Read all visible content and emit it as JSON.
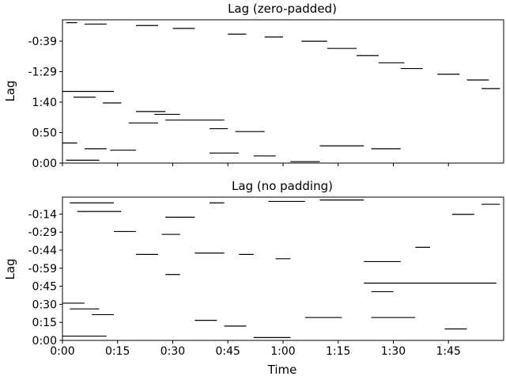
{
  "chart_data": [
    {
      "type": "heatmap",
      "title": "Lag (zero-padded)",
      "ylabel": "Lag",
      "xlabel": "",
      "colormap": [
        "#ffffff",
        "#000000"
      ],
      "grid": false,
      "legend": "none",
      "xlim_seconds": [
        0,
        120
      ],
      "ytick_labels": [
        "0:00",
        "0:50",
        "1:40",
        "-1:29",
        "-0:39"
      ],
      "xtick_labels": [],
      "segments": [
        {
          "x0": 1,
          "x1": 4,
          "row": 0.98
        },
        {
          "x0": 6,
          "x1": 12,
          "row": 0.97
        },
        {
          "x0": 20,
          "x1": 26,
          "row": 0.96
        },
        {
          "x0": 30,
          "x1": 36,
          "row": 0.94
        },
        {
          "x0": 45,
          "x1": 50,
          "row": 0.9
        },
        {
          "x0": 55,
          "x1": 60,
          "row": 0.88
        },
        {
          "x0": 65,
          "x1": 72,
          "row": 0.85
        },
        {
          "x0": 72,
          "x1": 80,
          "row": 0.8
        },
        {
          "x0": 80,
          "x1": 86,
          "row": 0.75
        },
        {
          "x0": 86,
          "x1": 93,
          "row": 0.7
        },
        {
          "x0": 92,
          "x1": 98,
          "row": 0.66
        },
        {
          "x0": 102,
          "x1": 108,
          "row": 0.62
        },
        {
          "x0": 110,
          "x1": 116,
          "row": 0.58
        },
        {
          "x0": 114,
          "x1": 119,
          "row": 0.52
        },
        {
          "x0": 0,
          "x1": 14,
          "row": 0.5
        },
        {
          "x0": 3,
          "x1": 9,
          "row": 0.46
        },
        {
          "x0": 11,
          "x1": 16,
          "row": 0.42
        },
        {
          "x0": 20,
          "x1": 28,
          "row": 0.36
        },
        {
          "x0": 25,
          "x1": 32,
          "row": 0.34
        },
        {
          "x0": 28,
          "x1": 44,
          "row": 0.3
        },
        {
          "x0": 18,
          "x1": 26,
          "row": 0.28
        },
        {
          "x0": 40,
          "x1": 45,
          "row": 0.24
        },
        {
          "x0": 47,
          "x1": 55,
          "row": 0.22
        },
        {
          "x0": 0,
          "x1": 4,
          "row": 0.14
        },
        {
          "x0": 6,
          "x1": 12,
          "row": 0.1
        },
        {
          "x0": 13,
          "x1": 20,
          "row": 0.09
        },
        {
          "x0": 40,
          "x1": 48,
          "row": 0.07
        },
        {
          "x0": 52,
          "x1": 58,
          "row": 0.05
        },
        {
          "x0": 70,
          "x1": 82,
          "row": 0.12
        },
        {
          "x0": 84,
          "x1": 92,
          "row": 0.1
        },
        {
          "x0": 1,
          "x1": 10,
          "row": 0.02
        },
        {
          "x0": 62,
          "x1": 70,
          "row": 0.01
        }
      ]
    },
    {
      "type": "heatmap",
      "title": "Lag (no padding)",
      "ylabel": "Lag",
      "xlabel": "Time",
      "colormap": [
        "#ffffff",
        "#000000"
      ],
      "grid": false,
      "legend": "none",
      "xlim_seconds": [
        0,
        120
      ],
      "ytick_labels": [
        "0:00",
        "0:15",
        "0:30",
        "0:45",
        "-0:59",
        "-0:44",
        "-0:29",
        "-0:14"
      ],
      "xtick_labels": [
        "0:00",
        "0:15",
        "0:30",
        "0:45",
        "1:00",
        "1:15",
        "1:30",
        "1:45"
      ],
      "segments": [
        {
          "x0": 2,
          "x1": 14,
          "row": 0.96
        },
        {
          "x0": 4,
          "x1": 16,
          "row": 0.9
        },
        {
          "x0": 28,
          "x1": 36,
          "row": 0.86
        },
        {
          "x0": 40,
          "x1": 44,
          "row": 0.96
        },
        {
          "x0": 56,
          "x1": 66,
          "row": 0.97
        },
        {
          "x0": 70,
          "x1": 82,
          "row": 0.98
        },
        {
          "x0": 106,
          "x1": 112,
          "row": 0.88
        },
        {
          "x0": 114,
          "x1": 119,
          "row": 0.95
        },
        {
          "x0": 14,
          "x1": 20,
          "row": 0.76
        },
        {
          "x0": 27,
          "x1": 32,
          "row": 0.74
        },
        {
          "x0": 20,
          "x1": 26,
          "row": 0.6
        },
        {
          "x0": 36,
          "x1": 44,
          "row": 0.61
        },
        {
          "x0": 48,
          "x1": 52,
          "row": 0.6
        },
        {
          "x0": 58,
          "x1": 62,
          "row": 0.57
        },
        {
          "x0": 82,
          "x1": 92,
          "row": 0.55
        },
        {
          "x0": 96,
          "x1": 100,
          "row": 0.65
        },
        {
          "x0": 28,
          "x1": 32,
          "row": 0.46
        },
        {
          "x0": 82,
          "x1": 118,
          "row": 0.4
        },
        {
          "x0": 84,
          "x1": 90,
          "row": 0.34
        },
        {
          "x0": 0,
          "x1": 6,
          "row": 0.26
        },
        {
          "x0": 2,
          "x1": 10,
          "row": 0.22
        },
        {
          "x0": 8,
          "x1": 14,
          "row": 0.18
        },
        {
          "x0": 36,
          "x1": 42,
          "row": 0.14
        },
        {
          "x0": 44,
          "x1": 50,
          "row": 0.1
        },
        {
          "x0": 66,
          "x1": 76,
          "row": 0.16
        },
        {
          "x0": 84,
          "x1": 96,
          "row": 0.16
        },
        {
          "x0": 104,
          "x1": 110,
          "row": 0.08
        },
        {
          "x0": 0,
          "x1": 12,
          "row": 0.03
        },
        {
          "x0": 52,
          "x1": 62,
          "row": 0.02
        }
      ]
    }
  ]
}
